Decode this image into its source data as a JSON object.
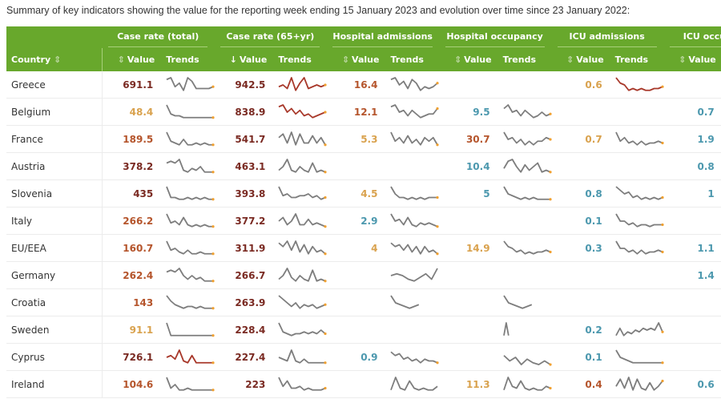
{
  "caption": "Summary of key indicators showing the value for the reporting week ending 15 January 2023 and evolution over time since 23 January 2022:",
  "colors": {
    "header": "#68a82c",
    "dr": "#7a2a22",
    "rd": "#b5552c",
    "or": "#d9a24e",
    "bl": "#4c98ae",
    "line": "#7d7d7d",
    "redline": "#a8382a",
    "end": "#f0a030"
  },
  "header": {
    "country": "Country",
    "value": "Value",
    "trends": "Trends",
    "groups": [
      "Case rate (total)",
      "Case rate (65+yr)",
      "Hospital admissions",
      "Hospital occupancy",
      "ICU admissions",
      "ICU occupancy"
    ]
  },
  "rows": [
    {
      "country": "Greece",
      "cells": [
        {
          "v": "691.1",
          "c": "dr",
          "t": [
            8,
            9,
            4,
            6,
            2,
            9,
            7,
            3,
            3,
            3,
            3,
            4
          ],
          "r": 0
        },
        {
          "v": "942.5",
          "c": "dr",
          "t": [
            4,
            5,
            3,
            9,
            2,
            6,
            9,
            3,
            4,
            5,
            4,
            5
          ],
          "r": 1
        },
        {
          "v": "16.4",
          "c": "rd",
          "t": [
            8,
            9,
            5,
            7,
            3,
            8,
            6,
            2,
            4,
            3,
            4,
            6
          ],
          "r": 0
        },
        {},
        {
          "v": "0.6",
          "c": "or",
          "t": [
            9,
            6,
            5,
            2,
            3,
            2,
            3,
            2,
            2,
            3,
            3,
            4
          ],
          "r": 1
        },
        {}
      ]
    },
    {
      "country": "Belgium",
      "cells": [
        {
          "v": "48.4",
          "c": "or",
          "t": [
            9,
            4,
            3,
            3,
            2,
            2,
            2,
            2,
            2,
            2,
            2,
            2
          ],
          "r": 0
        },
        {
          "v": "838.9",
          "c": "dr",
          "t": [
            8,
            9,
            5,
            7,
            4,
            6,
            3,
            4,
            2,
            3,
            4,
            5
          ],
          "r": 1
        },
        {
          "v": "12.1",
          "c": "rd",
          "t": [
            8,
            9,
            5,
            6,
            3,
            6,
            4,
            2,
            3,
            4,
            4,
            7
          ],
          "r": 0
        },
        {
          "v": "9.5",
          "c": "bl",
          "t": [
            7,
            9,
            5,
            6,
            3,
            6,
            4,
            2,
            3,
            5,
            3,
            4
          ],
          "r": 0
        },
        {},
        {
          "v": "0.7",
          "c": "bl",
          "t": [
            8,
            5,
            3,
            3
          ],
          "r": 0
        }
      ]
    },
    {
      "country": "France",
      "cells": [
        {
          "v": "189.5",
          "c": "rd",
          "t": [
            9,
            4,
            3,
            2,
            5,
            2,
            2,
            3,
            2,
            3,
            2,
            2
          ],
          "r": 0
        },
        {
          "v": "541.7",
          "c": "dr",
          "t": [
            6,
            8,
            3,
            9,
            2,
            8,
            3,
            3,
            7,
            3,
            6,
            2
          ],
          "r": 0
        },
        {
          "v": "5.3",
          "c": "or",
          "t": [
            9,
            4,
            6,
            3,
            7,
            3,
            5,
            2,
            6,
            4,
            6,
            2
          ],
          "r": 0
        },
        {
          "v": "30.7",
          "c": "rd",
          "t": [
            9,
            5,
            6,
            3,
            5,
            2,
            4,
            2,
            4,
            4,
            6,
            5
          ],
          "r": 0
        },
        {
          "v": "0.7",
          "c": "or",
          "t": [
            9,
            4,
            6,
            3,
            4,
            2,
            4,
            2,
            3,
            3,
            4,
            3
          ],
          "r": 0
        },
        {
          "v": "1.9",
          "c": "bl",
          "t": [
            8,
            5,
            3,
            3
          ],
          "r": 0
        }
      ]
    },
    {
      "country": "Austria",
      "cells": [
        {
          "v": "378.2",
          "c": "dr",
          "t": [
            7,
            8,
            7,
            9,
            3,
            2,
            4,
            3,
            5,
            2,
            2,
            2
          ],
          "r": 0
        },
        {
          "v": "463.1",
          "c": "dr",
          "t": [
            3,
            5,
            9,
            3,
            2,
            5,
            3,
            2,
            7,
            2,
            3,
            2
          ],
          "r": 0
        },
        {},
        {
          "v": "10.4",
          "c": "bl",
          "t": [
            4,
            8,
            9,
            5,
            2,
            6,
            3,
            5,
            7,
            2,
            3,
            2
          ],
          "r": 0
        },
        {},
        {
          "v": "0.8",
          "c": "bl",
          "t": [
            6,
            6,
            7,
            4
          ],
          "r": 0
        }
      ]
    },
    {
      "country": "Slovenia",
      "cells": [
        {
          "v": "435",
          "c": "dr",
          "t": [
            9,
            3,
            3,
            2,
            2,
            3,
            2,
            3,
            2,
            3,
            2,
            2
          ],
          "r": 0
        },
        {
          "v": "393.8",
          "c": "dr",
          "t": [
            9,
            4,
            5,
            3,
            3,
            4,
            4,
            5,
            3,
            4,
            2,
            3
          ],
          "r": 0
        },
        {
          "v": "4.5",
          "c": "or",
          "t": [
            9,
            5,
            3,
            3,
            2,
            3,
            2,
            3,
            2,
            3,
            3,
            3
          ],
          "r": 0
        },
        {
          "v": "5",
          "c": "bl",
          "t": [
            9,
            5,
            4,
            3,
            2,
            3,
            2,
            3,
            2,
            2,
            2,
            2
          ],
          "r": 0
        },
        {
          "v": "0.8",
          "c": "bl",
          "t": [
            9,
            7,
            5,
            6,
            3,
            4,
            2,
            3,
            2,
            3,
            2,
            3
          ],
          "r": 0
        },
        {
          "v": "1",
          "c": "bl",
          "t": [
            8,
            5,
            3,
            3
          ],
          "r": 0
        }
      ]
    },
    {
      "country": "Italy",
      "cells": [
        {
          "v": "266.2",
          "c": "rd",
          "t": [
            9,
            4,
            5,
            3,
            7,
            3,
            2,
            3,
            2,
            3,
            2,
            2
          ],
          "r": 0
        },
        {
          "v": "377.2",
          "c": "dr",
          "t": [
            5,
            7,
            3,
            5,
            9,
            3,
            3,
            6,
            3,
            4,
            3,
            2
          ],
          "r": 0
        },
        {
          "v": "2.9",
          "c": "bl",
          "t": [
            9,
            5,
            6,
            3,
            7,
            3,
            2,
            4,
            3,
            4,
            3,
            2
          ],
          "r": 0
        },
        {},
        {
          "v": "0.1",
          "c": "bl",
          "t": [
            9,
            5,
            5,
            3,
            4,
            2,
            3,
            3,
            2,
            3,
            3,
            3
          ],
          "r": 0
        },
        {}
      ]
    },
    {
      "country": "EU/EEA",
      "cells": [
        {
          "v": "160.7",
          "c": "rd",
          "t": [
            9,
            4,
            5,
            3,
            2,
            4,
            2,
            2,
            3,
            2,
            2,
            2
          ],
          "r": 0
        },
        {
          "v": "311.9",
          "c": "dr",
          "t": [
            8,
            6,
            9,
            4,
            9,
            3,
            7,
            2,
            6,
            3,
            4,
            2
          ],
          "r": 0
        },
        {
          "v": "4",
          "c": "or",
          "t": [
            8,
            6,
            7,
            4,
            7,
            3,
            6,
            2,
            6,
            3,
            4,
            2
          ],
          "r": 0
        },
        {
          "v": "14.9",
          "c": "or",
          "t": [
            9,
            6,
            5,
            3,
            4,
            2,
            3,
            2,
            3,
            3,
            4,
            3
          ],
          "r": 0
        },
        {
          "v": "0.3",
          "c": "bl",
          "t": [
            9,
            5,
            5,
            3,
            4,
            2,
            4,
            2,
            3,
            3,
            4,
            3
          ],
          "r": 0
        },
        {
          "v": "1.1",
          "c": "bl",
          "t": [
            8,
            5,
            3,
            3
          ],
          "r": 0
        }
      ]
    },
    {
      "country": "Germany",
      "cells": [
        {
          "v": "262.4",
          "c": "rd",
          "t": [
            7,
            8,
            7,
            9,
            5,
            3,
            5,
            3,
            4,
            2,
            2,
            2
          ],
          "r": 0
        },
        {
          "v": "266.7",
          "c": "dr",
          "t": [
            3,
            5,
            9,
            4,
            2,
            5,
            3,
            2,
            8,
            2,
            3,
            2
          ],
          "r": 0
        },
        {
          "t": [
            5,
            6,
            5,
            3,
            2,
            4,
            6,
            3,
            9
          ],
          "r": 0,
          "nodot": 1
        },
        {},
        {},
        {
          "v": "1.4",
          "c": "bl",
          "t": [
            8,
            8,
            6,
            4
          ],
          "r": 0
        }
      ]
    },
    {
      "country": "Croatia",
      "cells": [
        {
          "v": "143",
          "c": "rd",
          "t": [
            9,
            6,
            4,
            3,
            2,
            3,
            3,
            2,
            3,
            2,
            2,
            2
          ],
          "r": 0
        },
        {
          "v": "263.9",
          "c": "dr",
          "t": [
            9,
            7,
            5,
            3,
            5,
            2,
            4,
            3,
            4,
            2,
            3,
            4
          ],
          "r": 0
        },
        {
          "t": [
            9,
            5,
            4,
            3,
            2,
            3,
            4
          ],
          "r": 0,
          "nodot": 1,
          "w": 0.6
        },
        {
          "t": [
            9,
            5,
            4,
            3,
            2,
            3,
            4
          ],
          "r": 0,
          "nodot": 1,
          "w": 0.6
        },
        {},
        {}
      ]
    },
    {
      "country": "Sweden",
      "cells": [
        {
          "v": "91.1",
          "c": "or",
          "t": [
            9,
            2,
            2,
            2,
            2,
            2,
            2,
            2,
            2,
            2,
            2,
            2
          ],
          "r": 0
        },
        {
          "v": "228.4",
          "c": "dr",
          "t": [
            9,
            4,
            3,
            2,
            3,
            3,
            4,
            3,
            4,
            3,
            5,
            3
          ],
          "r": 0
        },
        {},
        {
          "t": [
            2,
            9,
            2
          ],
          "r": 0,
          "nodot": 1,
          "w": 0.1
        },
        {
          "v": "0.2",
          "c": "bl",
          "t": [
            2,
            6,
            2,
            4,
            3,
            5,
            4,
            6,
            5,
            6,
            5,
            9,
            4
          ],
          "r": 0
        },
        {
          "t": [
            8,
            5,
            3,
            3
          ],
          "r": 0
        }
      ]
    },
    {
      "country": "Cyprus",
      "cells": [
        {
          "v": "726.1",
          "c": "dr",
          "t": [
            5,
            6,
            4,
            9,
            3,
            2,
            6,
            2,
            2,
            2,
            2,
            2
          ],
          "r": 1
        },
        {
          "v": "227.4",
          "c": "dr",
          "t": [
            5,
            4,
            3,
            9,
            3,
            2,
            4,
            2,
            2,
            2,
            2,
            2
          ],
          "r": 0
        },
        {
          "v": "0.9",
          "c": "bl",
          "t": [
            8,
            6,
            7,
            4,
            5,
            3,
            4,
            2,
            4,
            3,
            3,
            2
          ],
          "r": 0
        },
        {
          "t": [
            6,
            3,
            5,
            1,
            4,
            2,
            1,
            3,
            1
          ],
          "r": 0
        },
        {
          "v": "0.1",
          "c": "bl",
          "t": [
            9,
            5,
            4,
            3,
            2,
            2,
            2,
            2,
            2,
            2,
            2,
            2
          ],
          "r": 0
        },
        {
          "t": [
            8,
            5,
            3,
            3
          ],
          "r": 0
        }
      ]
    },
    {
      "country": "Ireland",
      "cells": [
        {
          "v": "104.6",
          "c": "rd",
          "t": [
            9,
            3,
            5,
            2,
            2,
            3,
            2,
            2,
            2,
            2,
            2,
            2
          ],
          "r": 0
        },
        {
          "v": "223",
          "c": "dr",
          "t": [
            9,
            4,
            7,
            3,
            3,
            4,
            2,
            3,
            2,
            2,
            2,
            3
          ],
          "r": 0
        },
        {
          "t": [
            2,
            9,
            3,
            2,
            7,
            3,
            2,
            3,
            2,
            2,
            4
          ],
          "r": 0,
          "nodot": 1
        },
        {
          "v": "11.3",
          "c": "or",
          "t": [
            2,
            9,
            4,
            3,
            7,
            3,
            2,
            3,
            2,
            2,
            4,
            3
          ],
          "r": 0
        },
        {
          "v": "0.4",
          "c": "rd",
          "t": [
            4,
            8,
            3,
            9,
            2,
            8,
            3,
            2,
            6,
            2,
            4,
            7
          ],
          "r": 0
        },
        {
          "v": "0.6",
          "c": "bl",
          "t": [
            6,
            4,
            4,
            3
          ],
          "r": 0
        }
      ]
    }
  ]
}
